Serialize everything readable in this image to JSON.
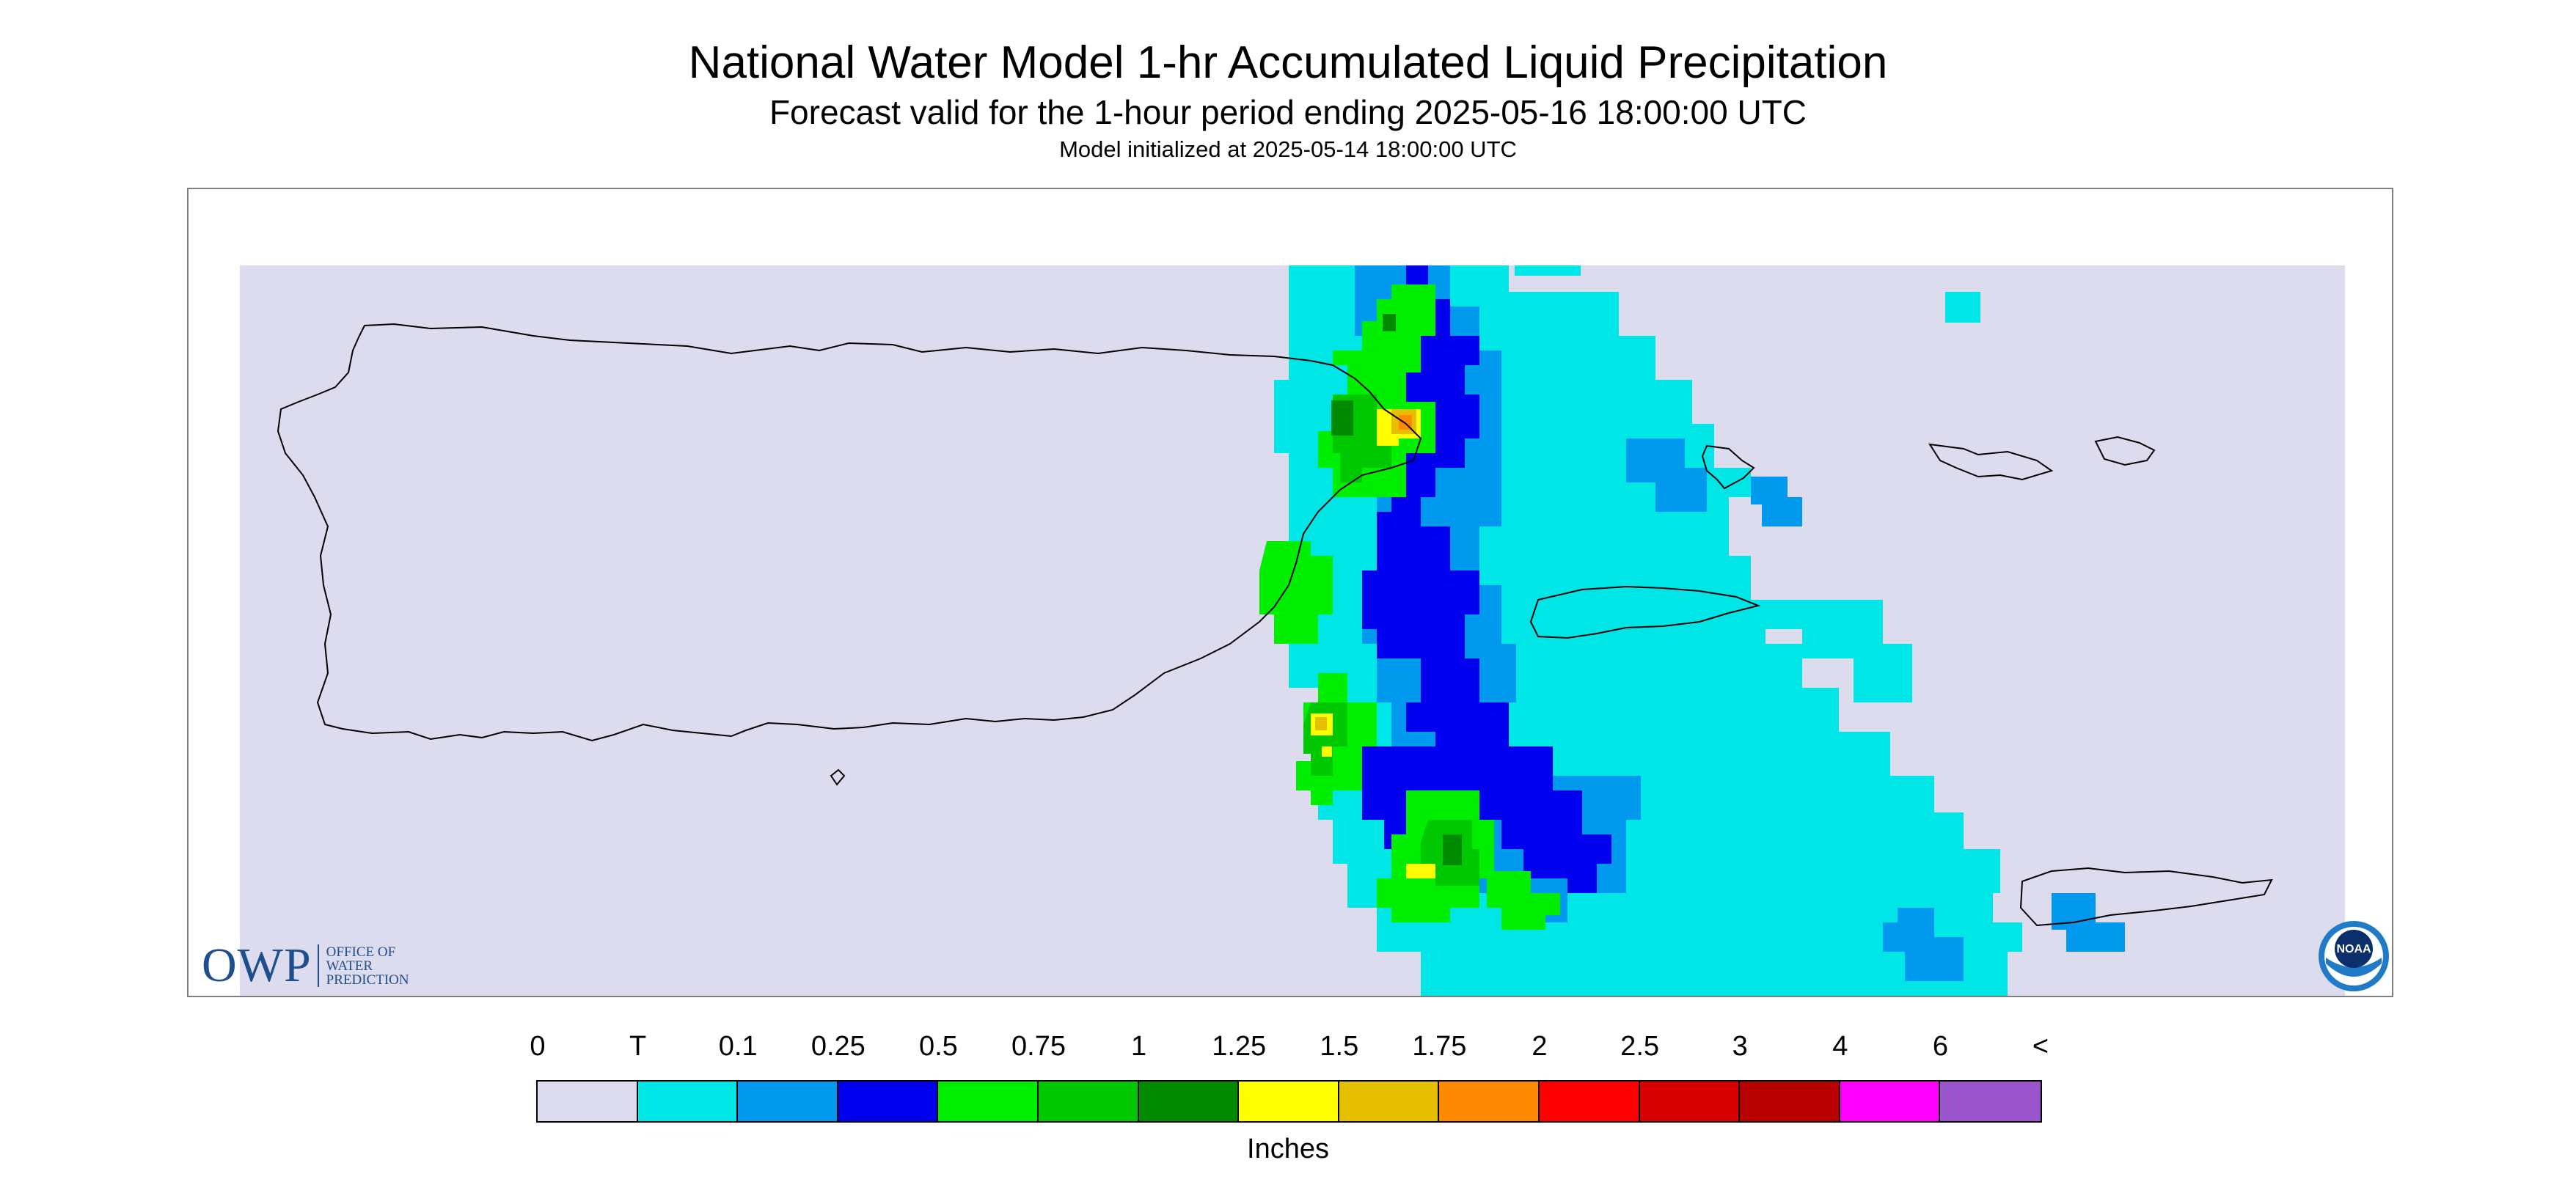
{
  "title": "National Water Model 1-hr Accumulated Liquid Precipitation",
  "subtitle": "Forecast valid for the 1-hour period ending 2025-05-16 18:00:00 UTC",
  "init_text": "Model initialized at 2025-05-14 18:00:00 UTC",
  "logo": {
    "owp_text": "OWP",
    "owp_sub_lines": [
      "OFFICE OF",
      "WATER",
      "PREDICTION"
    ],
    "noaa_text": "NOAA"
  },
  "colors": {
    "no_precip": "#dcdcee",
    "trace": "#00e5e5",
    "c_0_1": "#0099ee",
    "c_0_25": "#0000ee",
    "c_0_5": "#00ee00",
    "c_0_75": "#00c800",
    "c_1": "#008a00",
    "c_1_25": "#ffff00",
    "c_1_5": "#e5bf00",
    "c_1_75": "#ff8a00",
    "c_2": "#ff0000",
    "coastline": "#000000"
  },
  "legend": {
    "labels": [
      "0",
      "T",
      "0.1",
      "0.25",
      "0.5",
      "0.75",
      "1",
      "1.25",
      "1.5",
      "1.75",
      "2",
      "2.5",
      "3",
      "4",
      "6",
      "<"
    ],
    "colors": [
      "#dcdcee",
      "#00e5e5",
      "#0099ee",
      "#0000ee",
      "#00ee00",
      "#00c800",
      "#008a00",
      "#ffff00",
      "#e5bf00",
      "#ff8a00",
      "#ff0000",
      "#d80000",
      "#b80000",
      "#ff00ff",
      "#9a55cc"
    ],
    "unit": "Inches"
  }
}
